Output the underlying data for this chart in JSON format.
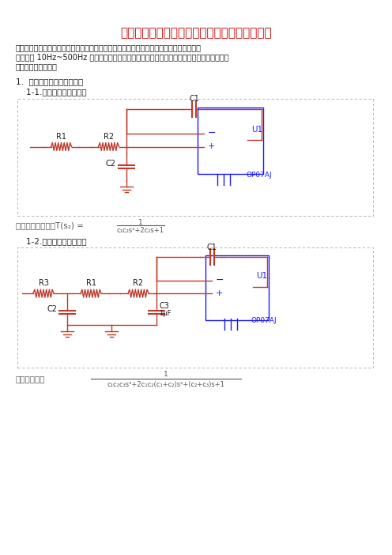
{
  "title": "浅谈五阶巴特沃斯低高通滤波器归一化设计方法",
  "title_color": "#cc0000",
  "red": "#c0392b",
  "blue": "#1a1aff",
  "black": "#1a1a1a",
  "gray": "#555555",
  "bg": "#ffffff",
  "dotbox_color": "#aaaaaa",
  "note_lines": [
    "注：滤波器由滤波节构成，一个滤波器可能只有一个滤波节，也可以由多个滤波节构成。以",
    "下示例为 10Hz~500Hz 的带通滤波器（由一个五阶巴特沃斯低通滤波器和一个五阶巴特沃斯",
    "高通滤波器构成）。"
  ],
  "sec1": "1.  五阶巴特沃斯低通滤波器",
  "sec1_1": "    1-1.二阶低通滤波器结构",
  "sec1_2": "    1-2.三阶低通滤波器结构",
  "tf2_label": "二阶传递函数为：T(s₂) = ",
  "tf2_num": "1",
  "tf2_den": "c₁c₂s²+2c₂s+1",
  "tf3_label": "传递函数为：",
  "tf3_num": "1",
  "tf3_den": "c₁c₂c₃s³+2c₁c₂(c₁+c₂)s²+(c₂+c₃)s+1"
}
